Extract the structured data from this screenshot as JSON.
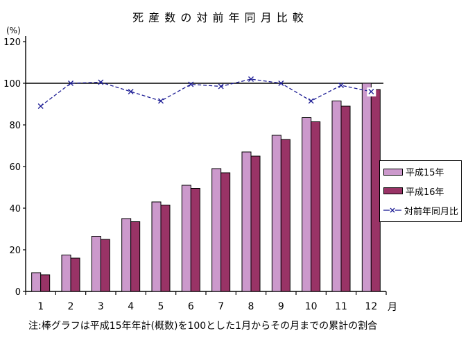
{
  "page": {
    "title": "死 産 数 の 対 前 年 同 月 比 較",
    "note": "注:棒グラフは平成15年年計(概数)を100とした1月からその月までの累計の割合"
  },
  "chart_data": {
    "type": "bar+line",
    "title": "死産数の対前年同月比較",
    "categories": [
      "1",
      "2",
      "3",
      "4",
      "5",
      "6",
      "7",
      "8",
      "9",
      "10",
      "11",
      "12"
    ],
    "series": [
      {
        "name": "平成15年",
        "type": "bar",
        "color": "#cc99cc",
        "values": [
          9,
          17.5,
          26.5,
          35,
          43,
          51,
          59,
          67,
          75,
          83.5,
          91.5,
          100
        ]
      },
      {
        "name": "平成16年",
        "type": "bar",
        "color": "#993366",
        "values": [
          8,
          16,
          25,
          33.5,
          41.5,
          49.5,
          57,
          65,
          73,
          81.5,
          89,
          97
        ]
      },
      {
        "name": "対前年同月比",
        "type": "line",
        "color": "#1c1c94",
        "marker": "x",
        "values": [
          89,
          100,
          100.5,
          96,
          91.5,
          99.5,
          98.5,
          102,
          100,
          91.5,
          99,
          96
        ]
      }
    ],
    "ylim": [
      0,
      120
    ],
    "yticks": [
      0,
      20,
      40,
      60,
      80,
      100,
      120
    ],
    "ylabel_unit": "(%)",
    "xlabel_unit": "月",
    "reference_line": 100,
    "grid": false,
    "legend_position": "middle-right",
    "bar_border_color": "#000000",
    "axis_color": "#000000",
    "highlighted_marker_month": 12,
    "highlighted_marker_box_color": "#ffffff"
  }
}
